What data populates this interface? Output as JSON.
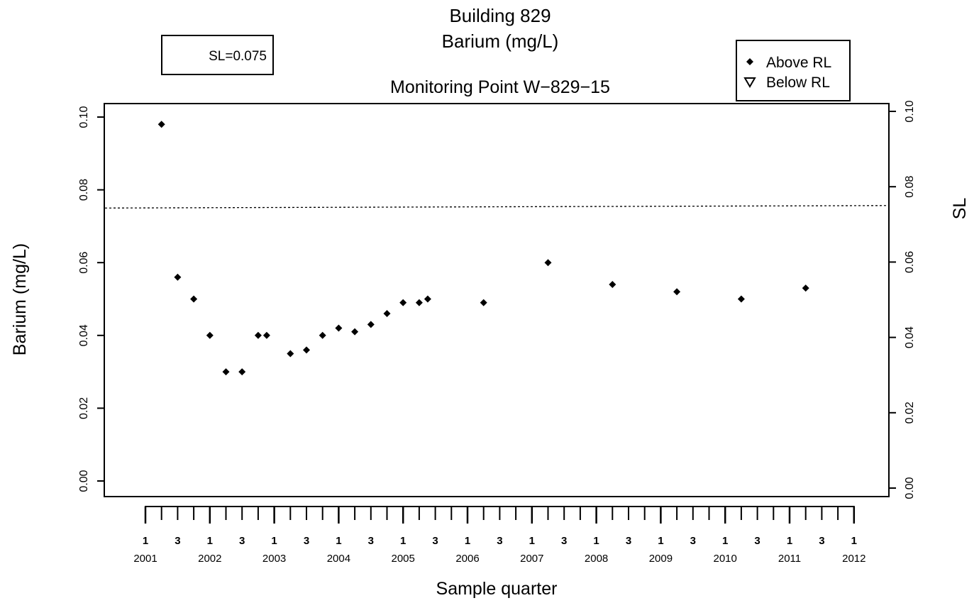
{
  "chart_data": {
    "type": "scatter",
    "title": "Building 829",
    "subtitle": "Barium (mg/L)",
    "monitoring_point": "Monitoring Point W−829−15",
    "xlabel": "Sample quarter",
    "ylabel": "Barium (mg/L)",
    "ylabel_right": "SL",
    "ylim": [
      0,
      0.1
    ],
    "yticks": [
      "0.00",
      "0.02",
      "0.04",
      "0.06",
      "0.08",
      "0.10"
    ],
    "xlim": [
      "2000-Q4",
      "2012-Q2"
    ],
    "quarter_tick_labels": [
      "1",
      "3",
      "1",
      "3",
      "1",
      "3",
      "1",
      "3",
      "1",
      "3",
      "1",
      "3",
      "1",
      "3",
      "1",
      "3",
      "1",
      "3",
      "1",
      "3",
      "1",
      "3",
      "1"
    ],
    "year_labels": [
      "2001",
      "2002",
      "2003",
      "2004",
      "2005",
      "2006",
      "2007",
      "2008",
      "2009",
      "2010",
      "2011",
      "2012"
    ],
    "sl_value": 0.075,
    "sl_box_text": "SL=0.075",
    "legend": {
      "above": "Above RL",
      "below": "Below RL",
      "position": "top-right"
    },
    "grid": false,
    "series": [
      {
        "name": "Above RL",
        "marker": "diamond",
        "points": [
          {
            "x": "2001-Q2",
            "y": 0.098
          },
          {
            "x": "2001-Q3",
            "y": 0.056
          },
          {
            "x": "2001-Q4",
            "y": 0.05
          },
          {
            "x": "2002-Q1",
            "y": 0.04
          },
          {
            "x": "2002-Q2",
            "y": 0.03
          },
          {
            "x": "2002-Q3",
            "y": 0.03
          },
          {
            "x": "2002-Q4",
            "y": 0.04
          },
          {
            "x": "2002-Q4",
            "y": 0.04
          },
          {
            "x": "2003-Q2",
            "y": 0.035
          },
          {
            "x": "2003-Q3",
            "y": 0.036
          },
          {
            "x": "2003-Q4",
            "y": 0.04
          },
          {
            "x": "2004-Q1",
            "y": 0.042
          },
          {
            "x": "2004-Q2",
            "y": 0.041
          },
          {
            "x": "2004-Q3",
            "y": 0.043
          },
          {
            "x": "2004-Q4",
            "y": 0.046
          },
          {
            "x": "2005-Q1",
            "y": 0.049
          },
          {
            "x": "2005-Q2",
            "y": 0.049
          },
          {
            "x": "2005-Q2",
            "y": 0.05
          },
          {
            "x": "2006-Q2",
            "y": 0.049
          },
          {
            "x": "2007-Q2",
            "y": 0.06
          },
          {
            "x": "2008-Q2",
            "y": 0.054
          },
          {
            "x": "2009-Q2",
            "y": 0.052
          },
          {
            "x": "2010-Q2",
            "y": 0.05
          },
          {
            "x": "2011-Q2",
            "y": 0.053
          }
        ]
      }
    ]
  }
}
